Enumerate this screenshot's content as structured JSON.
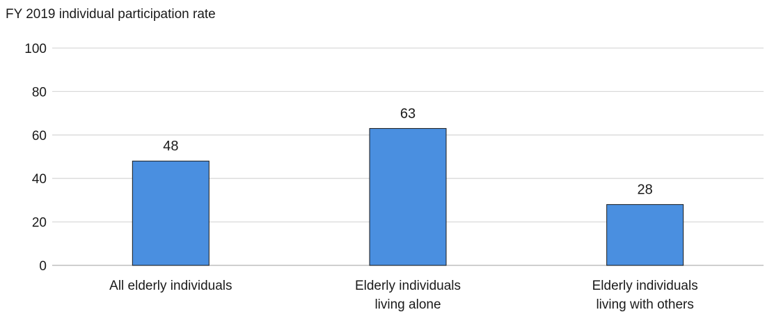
{
  "chart_data": {
    "type": "bar",
    "title": "FY 2019 individual participation rate",
    "categories": [
      [
        "All elderly individuals"
      ],
      [
        "Elderly individuals",
        "living alone"
      ],
      [
        "Elderly individuals",
        "living with others"
      ]
    ],
    "values": [
      48,
      63,
      28
    ],
    "data_labels": [
      "48",
      "63",
      "28"
    ],
    "ylim": [
      0,
      100
    ],
    "yticks": [
      0,
      20,
      40,
      60,
      80,
      100
    ],
    "ytick_labels": [
      "0",
      "20",
      "40",
      "60",
      "80",
      "100"
    ],
    "xlabel": "",
    "ylabel": "",
    "grid": "horizontal",
    "legend": "none",
    "colors": {
      "bar_fill": "#4a8fe0",
      "bar_stroke": "#1a1a1a",
      "grid": "#d9d9d9",
      "axis": "#bfbfbf"
    }
  }
}
